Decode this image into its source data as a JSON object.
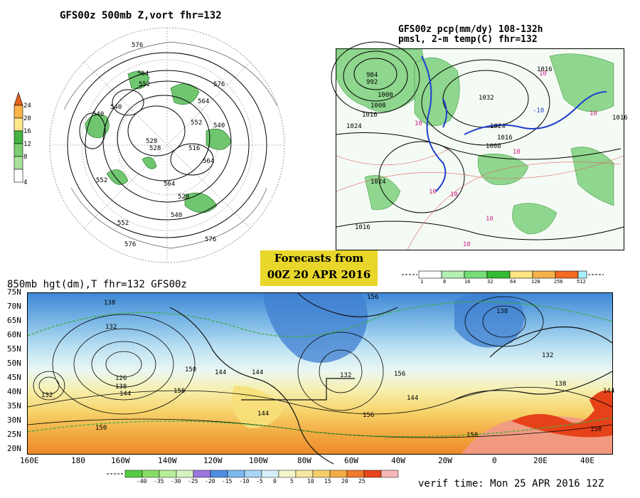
{
  "top_left": {
    "title": "GFS00z   500mb Z,vort    fhr=132",
    "colorbar_ticks": [
      "24",
      "20",
      "16",
      "12",
      "8",
      "4"
    ],
    "contour_labels": [
      "576",
      "564",
      "552",
      "540",
      "528",
      "516",
      "564",
      "576",
      "552",
      "540",
      "528",
      "564",
      "552",
      "540",
      "576",
      "576",
      "528",
      "564",
      "552",
      "540"
    ]
  },
  "top_right": {
    "title_line1": "GFS00z pcp(mm/dy) 108-132h",
    "title_line2": "pmsl, 2-m temp(C)  fhr=132",
    "pressure_labels": [
      "984",
      "992",
      "1000",
      "1008",
      "1016",
      "1024",
      "1024",
      "1016",
      "1032",
      "1024",
      "1016",
      "1008",
      "1016",
      "1016"
    ],
    "temp_labels": [
      "10",
      "10",
      "10",
      "10",
      "10",
      "-10",
      "10",
      "10",
      "10"
    ],
    "colorbar_ticks": [
      "1",
      "8",
      "16",
      "32",
      "64",
      "128",
      "256",
      "512"
    ]
  },
  "forecast_box": {
    "line1": "Forecasts from",
    "line2": "00Z 20 APR 2016"
  },
  "bottom": {
    "title": "850mb hgt(dm),T   fhr=132 GFS00z",
    "lat_labels": [
      "75N",
      "70N",
      "65N",
      "60N",
      "55N",
      "50N",
      "45N",
      "40N",
      "35N",
      "30N",
      "25N",
      "20N"
    ],
    "lon_labels": [
      "160E",
      "180",
      "160W",
      "140W",
      "120W",
      "100W",
      "80W",
      "60W",
      "40W",
      "20W",
      "0",
      "20E",
      "40E"
    ],
    "height_labels": [
      "138",
      "132",
      "126",
      "138",
      "144",
      "132",
      "150",
      "156",
      "144",
      "144",
      "144",
      "132",
      "156",
      "144",
      "156",
      "138",
      "132",
      "138",
      "156",
      "150",
      "150",
      "144",
      "150"
    ],
    "temp_colorbar_ticks": [
      "-40",
      "-35",
      "-30",
      "-25",
      "-20",
      "-15",
      "-10",
      "-5",
      "0",
      "5",
      "10",
      "15",
      "20",
      "25"
    ],
    "temp_colorbar_colors": [
      "#55cc44",
      "#88dd66",
      "#b7ee99",
      "#d5f5c0",
      "#9977dd",
      "#4f8ee0",
      "#7ab8ee",
      "#a8d6f5",
      "#d6f0fb",
      "#f3f6c8",
      "#f7e7a0",
      "#f6cf6a",
      "#f3ac45",
      "#ee7a2a",
      "#e8451c",
      "#f6b8b8"
    ],
    "verif_time": "verif time: Mon 25 APR 2016 12Z"
  },
  "colors": {
    "vort_colorbar": [
      "#7bcf71",
      "#a8e29c",
      "#45b545",
      "#ffe98a",
      "#f8b448",
      "#e06020"
    ],
    "pcp_colorbar": [
      "#ffffff",
      "#b3f0b3",
      "#77dd77",
      "#33bb33",
      "#ffe680",
      "#f7b14a",
      "#f56a1f",
      "#aaeeff"
    ]
  }
}
